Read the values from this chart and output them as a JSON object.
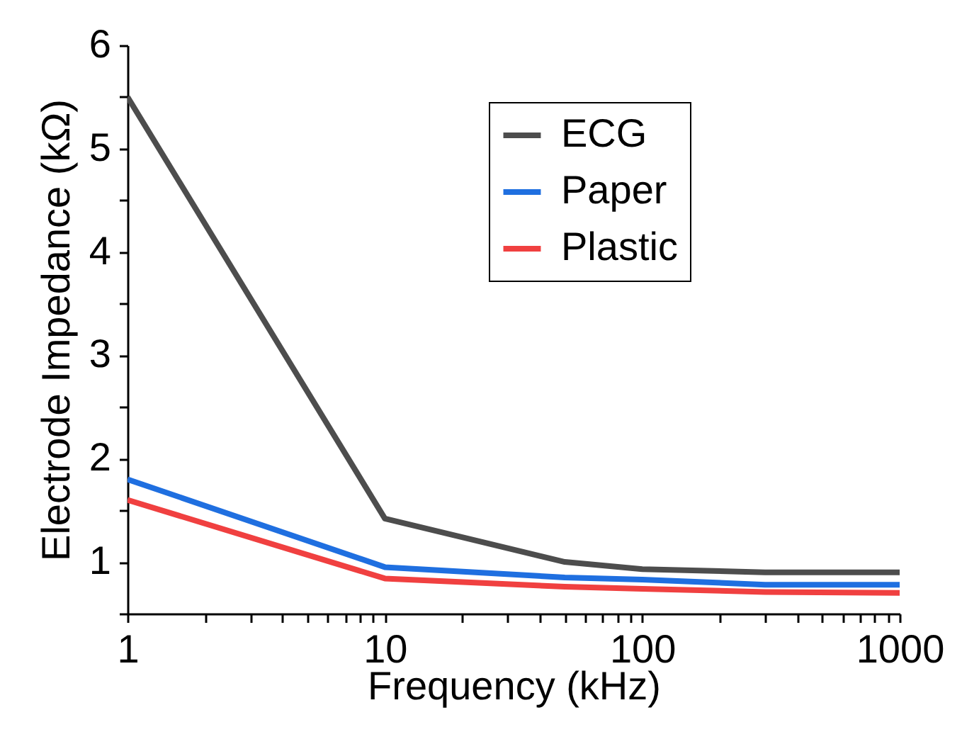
{
  "chart_data": {
    "type": "line",
    "xlabel": "Frequency (kHz)",
    "ylabel": "Electrode Impedance (kΩ)",
    "x": [
      1,
      10,
      50,
      100,
      300,
      1000
    ],
    "series": [
      {
        "name": "ECG",
        "color": "#4d4d4d",
        "values": [
          5.5,
          1.42,
          1.0,
          0.93,
          0.9,
          0.9
        ]
      },
      {
        "name": "Paper",
        "color": "#1f6fe0",
        "values": [
          1.8,
          0.95,
          0.85,
          0.83,
          0.78,
          0.78
        ]
      },
      {
        "name": "Plastic",
        "color": "#f04040",
        "values": [
          1.6,
          0.84,
          0.76,
          0.74,
          0.71,
          0.7
        ]
      }
    ],
    "log": "x",
    "xlim": [
      1,
      1000
    ],
    "xticks": [
      1,
      {
        "value": 2,
        "label": null
      },
      {
        "value": 3,
        "label": null
      },
      {
        "value": 4,
        "label": null
      },
      {
        "value": 5,
        "label": null
      },
      {
        "value": 6,
        "label": null
      },
      {
        "value": 7,
        "label": null
      },
      {
        "value": 8,
        "label": null
      },
      {
        "value": 9,
        "label": null
      },
      10,
      {
        "value": 20,
        "label": null
      },
      {
        "value": 30,
        "label": null
      },
      {
        "value": 40,
        "label": null
      },
      {
        "value": 50,
        "label": null
      },
      {
        "value": 60,
        "label": null
      },
      {
        "value": 70,
        "label": null
      },
      {
        "value": 80,
        "label": null
      },
      {
        "value": 90,
        "label": null
      },
      100,
      {
        "value": 200,
        "label": null
      },
      {
        "value": 300,
        "label": null
      },
      {
        "value": 400,
        "label": null
      },
      {
        "value": 500,
        "label": null
      },
      {
        "value": 600,
        "label": null
      },
      {
        "value": 700,
        "label": null
      },
      {
        "value": 800,
        "label": null
      },
      {
        "value": 900,
        "label": null
      },
      1000
    ],
    "ylim": [
      0.5,
      6
    ],
    "yticks": [
      {
        "value": 0.5,
        "label": null
      },
      1,
      {
        "value": 1.5,
        "label": null
      },
      2,
      {
        "value": 2.5,
        "label": null
      },
      3,
      {
        "value": 3.5,
        "label": null
      },
      4,
      {
        "value": 4.5,
        "label": null
      },
      5,
      {
        "value": 5.5,
        "label": null
      },
      6
    ],
    "grid": false,
    "legend": "top right",
    "line_style": "solid",
    "marker": "none"
  }
}
